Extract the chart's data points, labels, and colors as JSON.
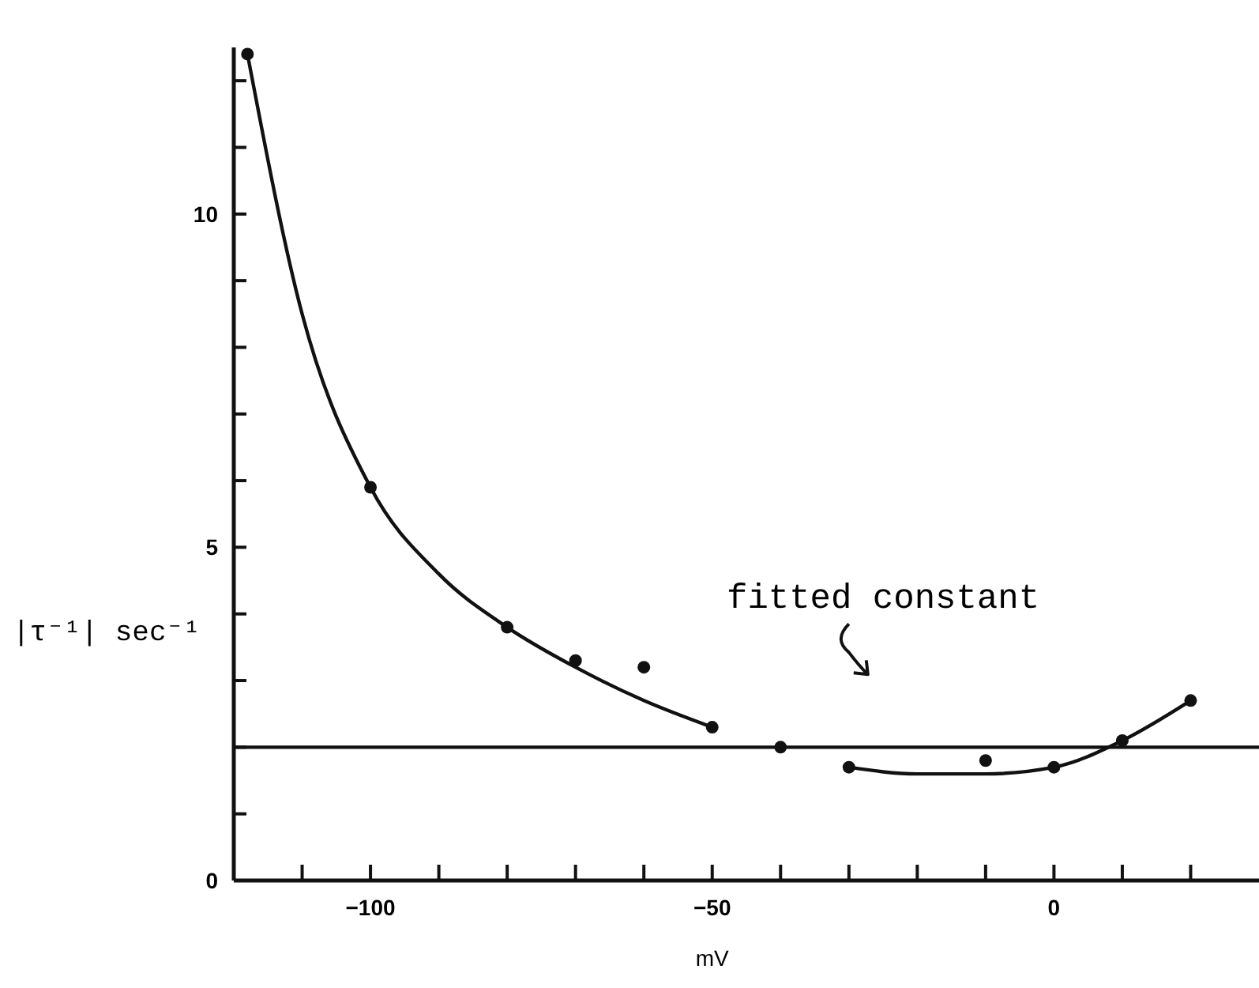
{
  "chart_data": {
    "type": "scatter",
    "xlabel": "mV",
    "ylabel": "|τ⁻¹| sec⁻¹",
    "xlim": [
      -120,
      30
    ],
    "ylim": [
      0,
      12.5
    ],
    "xticks": [
      {
        "value": -120,
        "label": null
      },
      {
        "value": -110,
        "label": null
      },
      {
        "value": -100,
        "label": "−100"
      },
      {
        "value": -90,
        "label": null
      },
      {
        "value": -80,
        "label": null
      },
      {
        "value": -70,
        "label": null
      },
      {
        "value": -60,
        "label": null
      },
      {
        "value": -50,
        "label": "−50"
      },
      {
        "value": -40,
        "label": null
      },
      {
        "value": -30,
        "label": null
      },
      {
        "value": -20,
        "label": null
      },
      {
        "value": -10,
        "label": null
      },
      {
        "value": 0,
        "label": "0"
      },
      {
        "value": 10,
        "label": null
      },
      {
        "value": 20,
        "label": null
      }
    ],
    "yticks": [
      0,
      {
        "value": 1,
        "label": null
      },
      {
        "value": 2,
        "label": null
      },
      {
        "value": 3,
        "label": null
      },
      {
        "value": 4,
        "label": null
      },
      5,
      {
        "value": 6,
        "label": null
      },
      {
        "value": 7,
        "label": null
      },
      {
        "value": 8,
        "label": null
      },
      {
        "value": 9,
        "label": null
      },
      10,
      {
        "value": 11,
        "label": null
      },
      {
        "value": 12,
        "label": null
      }
    ],
    "grid": false,
    "marker": "circle",
    "series": [
      {
        "color": "#111111",
        "x": [
          -118,
          -100,
          -80,
          -70,
          -60,
          -50,
          -40,
          -30,
          -10,
          0,
          10,
          20
        ],
        "values": [
          12.4,
          5.9,
          3.8,
          3.3,
          3.2,
          2.3,
          2.0,
          1.7,
          1.8,
          1.7,
          2.1,
          2.7
        ]
      },
      {
        "type": "line",
        "color": "#111111",
        "marker": "none",
        "x": [
          -118,
          -110,
          -100,
          -90,
          -80,
          -70,
          -60,
          -50
        ],
        "values": [
          12.4,
          8.5,
          5.9,
          4.6,
          3.8,
          3.2,
          2.7,
          2.3
        ]
      },
      {
        "type": "line",
        "color": "#111111",
        "marker": "none",
        "x": [
          -30,
          -20,
          -10,
          0,
          10,
          20
        ],
        "values": [
          1.7,
          1.6,
          1.6,
          1.7,
          2.1,
          2.7
        ]
      }
    ],
    "ref_lines": [
      {
        "axis": "y",
        "value": 2.0,
        "label": "fitted constant",
        "color": "#111111"
      }
    ]
  }
}
